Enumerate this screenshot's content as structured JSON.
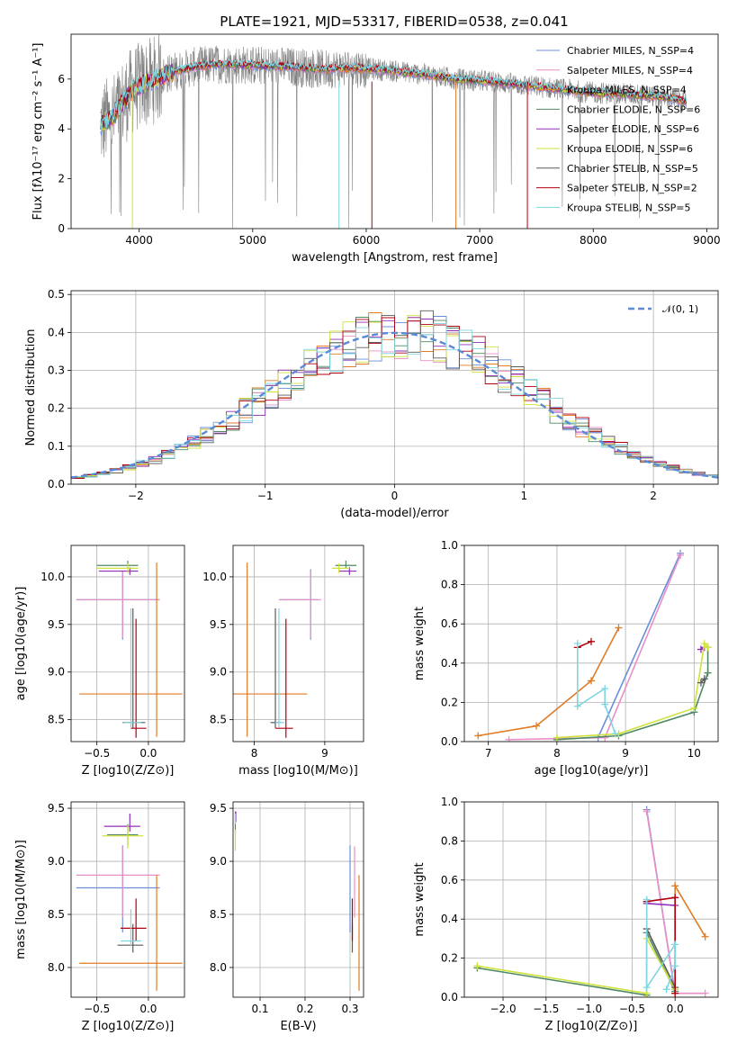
{
  "title": "PLATE=1921, MJD=53317, FIBERID=0538, z=0.041",
  "colors": {
    "data": "#808080",
    "series": [
      "#6a8fd8",
      "#e98fc6",
      "#e07b26",
      "#4f8a63",
      "#8f2fb8",
      "#cfe23e",
      "#5a5a5a",
      "#b00010",
      "#7fd6e0"
    ],
    "gaussian": "#5b8ad6"
  },
  "chart_data": [
    {
      "id": "spectrum",
      "type": "line",
      "xlabel": "wavelength [Angstrom, rest frame]",
      "ylabel": "Flux [fλ10⁻¹⁷ erg cm⁻² s⁻¹ A⁻¹]",
      "xlim": [
        3400,
        9100
      ],
      "ylim": [
        0,
        7.8
      ],
      "xticks": [
        "4000",
        "5000",
        "6000",
        "7000",
        "8000",
        "9000"
      ],
      "yticks": [
        "0",
        "2",
        "4",
        "6"
      ],
      "grid": false,
      "legend_position": "top-right",
      "legend": [
        "Chabrier MILES, N_SSP=4",
        "Salpeter MILES, N_SSP=4",
        "Kroupa MILES, N_SSP=4",
        "Chabrier ELODIE, N_SSP=6",
        "Salpeter ELODIE, N_SSP=6",
        "Kroupa ELODIE, N_SSP=6",
        "Chabrier STELIB, N_SSP=5",
        "Salpeter STELIB, N_SSP=2",
        "Kroupa STELIB, N_SSP=5"
      ],
      "model_continuum": [
        [
          3650,
          4.1
        ],
        [
          3700,
          4.3
        ],
        [
          3760,
          4.4
        ],
        [
          3850,
          5.0
        ],
        [
          3950,
          5.6
        ],
        [
          4100,
          5.9
        ],
        [
          4300,
          6.3
        ],
        [
          4500,
          6.5
        ],
        [
          4700,
          6.6
        ],
        [
          5000,
          6.55
        ],
        [
          5300,
          6.5
        ],
        [
          5600,
          6.4
        ],
        [
          5900,
          6.45
        ],
        [
          6200,
          6.35
        ],
        [
          6500,
          6.2
        ],
        [
          6800,
          6.0
        ],
        [
          7100,
          5.9
        ],
        [
          7400,
          5.75
        ],
        [
          7700,
          5.6
        ],
        [
          8000,
          5.45
        ],
        [
          8300,
          5.4
        ],
        [
          8600,
          5.3
        ],
        [
          8820,
          5.1
        ]
      ]
    },
    {
      "id": "residuals",
      "type": "line",
      "xlabel": "(data-model)/error",
      "ylabel": "Normed distribution",
      "xlim": [
        -2.5,
        2.5
      ],
      "ylim": [
        0,
        0.51
      ],
      "xticks": [
        "−2",
        "−1",
        "0",
        "1",
        "2"
      ],
      "yticks": [
        "0.0",
        "0.1",
        "0.2",
        "0.3",
        "0.4",
        "0.5"
      ],
      "grid": true,
      "legend_position": "top-right",
      "legend": [
        "𝒩(0, 1)"
      ],
      "bin_width": 0.1,
      "bin_start": -2.5
    },
    {
      "id": "age-vs-Z",
      "type": "scatter",
      "xlabel": "Z [log10(Z/Z⊙)]",
      "ylabel": "age  [log10(age/yr)]",
      "xlim": [
        -0.75,
        0.35
      ],
      "ylim": [
        8.27,
        10.33
      ],
      "xticks": [
        "−0.5",
        "0.0"
      ],
      "yticks": [
        "8.5",
        "9.0",
        "9.5",
        "10.0"
      ],
      "grid": true
    },
    {
      "id": "age-vs-mass",
      "type": "scatter",
      "xlabel": "mass [log10(M/M⊙)]",
      "ylabel": "",
      "xlim": [
        7.7,
        9.55
      ],
      "ylim": [
        8.27,
        10.33
      ],
      "xticks": [
        "8",
        "9"
      ],
      "yticks": [
        "8.5",
        "9.0",
        "9.5",
        "10.0"
      ],
      "grid": true
    },
    {
      "id": "massweight-vs-age",
      "type": "line",
      "xlabel": "age  [log10(age/yr)]",
      "ylabel": "mass weight",
      "xlim": [
        6.65,
        10.35
      ],
      "ylim": [
        0,
        1.0
      ],
      "xticks": [
        "7",
        "8",
        "9",
        "10"
      ],
      "yticks": [
        "0.0",
        "0.2",
        "0.4",
        "0.6",
        "0.8",
        "1.0"
      ],
      "grid": true,
      "series": [
        {
          "points": [
            [
              8.6,
              0.02
            ],
            [
              9.8,
              0.96
            ]
          ]
        },
        {
          "points": [
            [
              7.3,
              0.01
            ],
            [
              8.7,
              0.02
            ],
            [
              9.8,
              0.95
            ]
          ]
        },
        {
          "points": [
            [
              6.85,
              0.03
            ],
            [
              7.7,
              0.08
            ],
            [
              8.5,
              0.31
            ],
            [
              8.9,
              0.58
            ]
          ]
        },
        {
          "points": [
            [
              8.0,
              0.01
            ],
            [
              8.9,
              0.03
            ],
            [
              10.0,
              0.15
            ],
            [
              10.2,
              0.35
            ],
            [
              10.2,
              0.48
            ]
          ]
        },
        {
          "points": [
            [
              10.1,
              0.47
            ],
            [
              10.15,
              0.48
            ]
          ]
        },
        {
          "points": [
            [
              8.0,
              0.02
            ],
            [
              8.9,
              0.04
            ],
            [
              10.0,
              0.17
            ],
            [
              10.15,
              0.5
            ],
            [
              10.2,
              0.48
            ]
          ]
        },
        {
          "points": [
            [
              10.1,
              0.3
            ],
            [
              10.15,
              0.32
            ]
          ]
        },
        {
          "points": [
            [
              8.3,
              0.48
            ],
            [
              8.5,
              0.51
            ]
          ]
        },
        {
          "points": [
            [
              8.3,
              0.5
            ],
            [
              8.3,
              0.18
            ],
            [
              8.7,
              0.27
            ],
            [
              8.7,
              0.19
            ],
            [
              8.85,
              0.04
            ]
          ]
        }
      ]
    },
    {
      "id": "mass-vs-Z",
      "type": "scatter",
      "xlabel": "Z [log10(Z/Z⊙)]",
      "ylabel": "mass [log10(M/M⊙)]",
      "xlim": [
        -0.75,
        0.35
      ],
      "ylim": [
        7.72,
        9.56
      ],
      "xticks": [
        "−0.5",
        "0.0"
      ],
      "yticks": [
        "8.0",
        "8.5",
        "9.0",
        "9.5"
      ],
      "grid": true
    },
    {
      "id": "mass-vs-ebv",
      "type": "scatter",
      "xlabel": "E(B-V)",
      "ylabel": "",
      "xlim": [
        0.04,
        0.33
      ],
      "ylim": [
        7.72,
        9.56
      ],
      "xticks": [
        "0.1",
        "0.2",
        "0.3"
      ],
      "yticks": [
        "8.0",
        "8.5",
        "9.0",
        "9.5"
      ],
      "grid": true
    },
    {
      "id": "massweight-vs-Z",
      "type": "line",
      "xlabel": "Z [log10(Z/Z⊙)]",
      "ylabel": "mass weight",
      "xlim": [
        -2.45,
        0.5
      ],
      "ylim": [
        0,
        1.0
      ],
      "xticks": [
        "−2.0",
        "−1.5",
        "−1.0",
        "−0.5",
        "0.0"
      ],
      "yticks": [
        "0.0",
        "0.2",
        "0.4",
        "0.6",
        "0.8",
        "1.0"
      ],
      "grid": true,
      "series": [
        {
          "points": [
            [
              -0.33,
              0.96
            ],
            [
              0.0,
              0.02
            ]
          ]
        },
        {
          "points": [
            [
              -0.33,
              0.95
            ],
            [
              0.0,
              0.02
            ],
            [
              0.35,
              0.02
            ]
          ]
        },
        {
          "points": [
            [
              0.0,
              0.02
            ],
            [
              0.0,
              0.57
            ],
            [
              0.35,
              0.31
            ]
          ]
        },
        {
          "points": [
            [
              -2.3,
              0.15
            ],
            [
              -0.33,
              0.01
            ],
            [
              -0.33,
              0.33
            ],
            [
              0.0,
              0.03
            ]
          ]
        },
        {
          "points": [
            [
              -0.33,
              0.48
            ],
            [
              0.0,
              0.47
            ]
          ]
        },
        {
          "points": [
            [
              -2.3,
              0.16
            ],
            [
              -0.33,
              0.02
            ],
            [
              -0.33,
              0.3
            ],
            [
              0.0,
              0.04
            ]
          ]
        },
        {
          "points": [
            [
              -0.33,
              0.35
            ],
            [
              0.0,
              0.05
            ]
          ]
        },
        {
          "points": [
            [
              -0.33,
              0.49
            ],
            [
              0.0,
              0.51
            ],
            [
              0.0,
              0.02
            ]
          ]
        },
        {
          "points": [
            [
              -0.33,
              0.5
            ],
            [
              -0.33,
              0.05
            ],
            [
              0.0,
              0.27
            ],
            [
              0.0,
              0.16
            ],
            [
              -0.1,
              0.04
            ]
          ]
        }
      ]
    }
  ]
}
